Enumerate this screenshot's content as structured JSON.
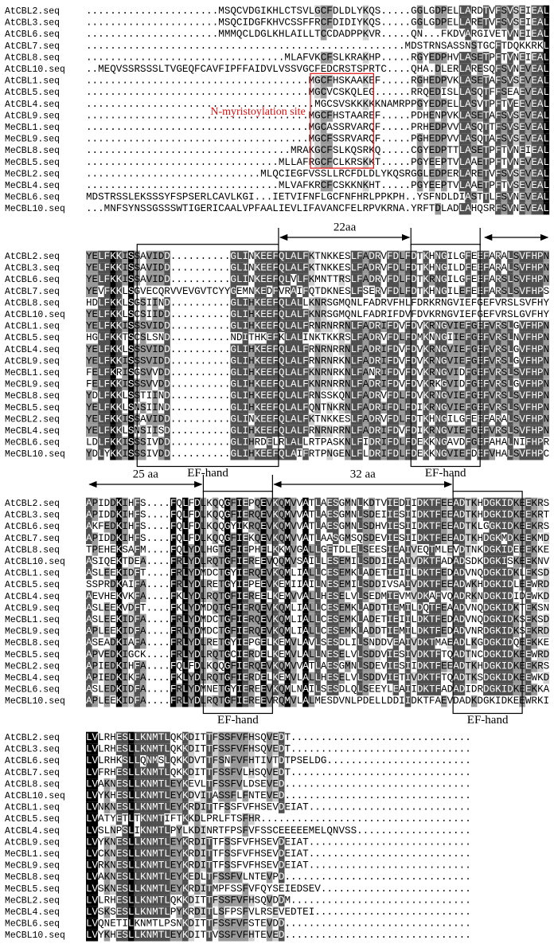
{
  "names": [
    "AtCBL2.seq",
    "AtCBL3.seq",
    "AtCBL6.seq",
    "AtCBL7.seq",
    "AtCBL8.seq",
    "AtCBL10.seq",
    "AtCBL1.seq",
    "AtCBL5.seq",
    "AtCBL4.seq",
    "AtCBL9.seq",
    "MeCBL1.seq",
    "MeCBL9.seq",
    "MeCBL8.seq",
    "MeCBL5.seq",
    "MeCBL2.seq",
    "MeCBL4.seq",
    "MeCBL6.seq",
    "MeCBL10.seq"
  ],
  "blocks": [
    {
      "site_label": "N-myristoylation site",
      "rows": [
        "......................MSQCVDGIKHLCTSVLGCFDLDLYKQS.....GGLGDPELLARDTVFSVSEIEAL",
        "......................MSQCIDGFKHVCSSFFRCFDIDIYKQS.....GGLGDPELLARETVFSVSEIEAL",
        "......................MMMQCLDGLKHLAILLTCCDADPPKVR.....QN...FKDVARGIVETVNEIEAL",
        ".....................................................MDSTRNSASSNSTGCFTDQKKRKL",
        ".................................MLAFVKCFSLKRAKHP.....RGYEDPHVLASETPFTVNEIEAL",
        "..MEQVSSRSSSLTVGEQFCAVFIPFFAIDVLVSSVGCFEDCRSTSPRTC....QHA.DLERLARESQFSVNEVEAL",
        ".....................................MGCFHSKAAKEF.....RGHEDPVKLASETAFSVSEVEAL",
        ".....................................MGCVCSKQLEG......RRQEDISLLASQTFFSEAEVEAL",
        "......................................MGCSVSKKKKKNAMRPPGYEDPELLASVTPFTVEEVEAL",
        ".....................................MGCFHSTAAREF.....PDHENPVKLASETAFSVSEVEAL",
        ".....................................MGCASSRVARQF.....PRHEDPVVLASQTTFSVSEVEAL",
        ".....................................MGCFSSRVARQF.....PGHEDPVVLASQTAFSVSEVEAL",
        "..................................MRAKGCFSLKQSRKQ.....CGYEDPTTLASETPFTVNEIEAL",
        "................................MLLAFRGCFCLKRSKKT.....PGYEEPTVLAAETPFTVNEVEAL",
        ".............................MLQCIEGFVSSLLRCFDLDLYKQSRGGLEDPERLARETVFSVSEVEAL",
        "................................MLVAFKRCFCSKKNKHT.....PGYEEPTVLAAETPFTVSEVEAL",
        "MDSTRSSLEKSSSYFSPSERLCAVLKGI...IETVIFNFLGCFNFHRLPPKPH..YSFNDLDIASTTLFSVNEVEAL",
        "...MNFSYNSSGSSSWTIGERICAALVPFAALIEVLIFAVANCFELRPVKRNA.YRFTDLADLAHQSRFSVNEVEAL"
      ]
    },
    {
      "arrow_labels": [
        "22aa"
      ],
      "box_labels": [
        "EF-hand",
        "EF-hand"
      ],
      "rows": [
        "YELFKKISSAVIDD..........GLINKEEFQLALFKTNKKESLFADRVFDLFDTKHNGILGFEEFARALSVFHPN",
        "YELFKKISSAVIDD..........GLINKEEFQLALFKTNKKESLFADRVFDLFDTKHNGILDFEEFARALSVFHPN",
        "YELFKKISSAVIDD..........GLINKEEFQLVLFKMNTTRSLFADRVFDLFDTKRNGILGFEEFARSLSVFHPN",
        "YEVFKKLSGVECQRVVEVGVTCYYGEMNKEDFVRAIFQTDKNESLFSERVFDLFDTKHNGILEFEEFARSLSVFHPS",
        "HDLFKKLSGSIIND..........GLIHKEEFQLALLKNRSGMQNLFADRVFHLFDRKRNGVIEFGEFVRSLSVFHY",
        "YELFKKLSCSIIDD..........GLIHKEEFQLALFKNRSGMQNLFADRIFDVFDVKRNGVIEFGEFVRSLGVFHY",
        "YELFKKISSSVIDD..........GLIHKEEFQLALFRNRNRRNLFADRIFDVFDVKRNGVIEFGEFVRSLGVFHPN",
        "HGLFKKTSCSLSND..........NDITHKEFKLALINKTKKRSLFADRVFDLFDMKNNGIIEFGEFVRSLNVFHPN",
        "YELFKKLSSSVIDD..........GLIHKEEFQLALFRNRNRRNLFADRIFDVFDVKRNGVIEFGEFVRSLGVFHPN",
        "YELFKKISSSVIDD..........GLIHKEEFQLALFRNRNRKNLFADRIFDVFDVKRNGVIEFGEFVRSLGVFHPN",
        "FELFKRISGSVVDD..........GLIHKEEFQLALFKNRNRKNLFANRIFDVFDVKRNGVIDFGEFVRSLSVFHPN",
        "FELFKKISSSVVDD..........GLIHKEEFQLALFKNRNRRNLFADRIFDVFDVKRKGVIDFGEFVRSLGVFHPN",
        "YDLFKKLSSTIIND..........GLIHKEEFQLALFRNSSKQNLFADRVFDLFDVKRNGVIEFGEFVRSLSVFHPN",
        "YELFKKLSNSIIND..........GLIHKEEFQLALFQNTNKRNLFADRIFDLFDIKRNGVIEFGEFVRSLSVFHPN",
        "YELFKKISSAVIDD..........GLINKEEFQLALFKTNKKESLFADRVFDLFDTKHNGILGFEEFARALSVFHPN",
        "YELFKKLSNSIISD..........GLIHKEEFQLALFRNRNRRNLFADRIFDVFDIKRNGVIEFGEFVRSLSVFHPN",
        "LDLFKKISSSIVDD..........GLIHRDELRLALLRTPASKNLFIDRIFDLFDEKKNGAVDFGEFAHALNIFHPR",
        "YDLYKKISSSIVDD..........GLIHKEEFQLAIFRTPNGENLFLDRIFDLFDEKKNGVIEFDEFVHALSVFHPC"
      ]
    },
    {
      "arrow_labels": [
        "25 aa",
        "32 aa"
      ],
      "box_labels": [
        "EF-hand",
        "EF-hand"
      ],
      "rows": [
        "APIDDKIHFS....FQLFDLKQQGFIEPQEVKQMVVATLAESGMNLKDTVIEDIIDKTFEEADTKHDGKIDKEEKRS",
        "APIDDKIHFS....FQLFDLKQQGFIERQEVKQMVVATLAESGMNLSDEIIESIIDKTFEEADTKHDGKIDKEEKRT",
        "AKFEDKIHFS....FQLFDLKQQGYIKRQEVKQMVVATLAESGMNLSDHVIESIIDKTFEEADTKLGGKIDKEEKRS",
        "APIDDKIHFS....FQLFDLKQQGFIEKQEVKQMVVATLAASGMSQSDEVIESIIDKTFEEADTKHDGKMDKEEKMD",
        "TPEHEKSAFM....FQLYDLHGTGFIEPHELKKMVGALLGETDLELSEESIEAIVEQTMLEVDTNKDGKIDEEEKKE",
        "ASIQEKTDEA....FRLYDLRQTGFIEREEVQQMVSAILLESEMILSDDIIEAIVDKTFADADSDKDGKISKEEKNV",
        "ASLEEKIDFT....FRLYDMDCTGYIERQEVKQMLIALLCESEMKLADETIEIILDKTFEDADVNQDGKIDKLEKSD",
        "SSPRDKAIFA....FRLYDLRETGYIEPEEVKEMIIAILNESEMILSDDIVSAIVDKTFEEADWKHDGKIDLEEWRD",
        "AEVHEKVKFA....FKLYDLRQTGFIEREELKEMVVALLHESELVLSEDMIEVMVDKAFVQADRKNDGKIDIDEWKD",
        "ASLEEKVDFT....FKLYDMDQTGFIERQEVKQMLIALLCESEMKLADDTIEMILDQTFEAADVNQDGKIDKTEKSN",
        "ASLEEKIDFA....FRLYDMDCTGFIERQEVKQMLIALLCESEMKLADETIEIILDKTFEDADVNQDGKIDKSEKSD",
        "APLEEKIDFA....FRLYDMDCTGFIERQEVKQMLIALLCESEMKLADDTIEMILDKTFEDADVNRDGKIDKSEKRD",
        "ASEADKIAFA....FRLYDLRETGYIEPGELKEMVLAVLSESDLILSNDDVEAIVDKTMAEADLKGDGKIDQEEKKE",
        "APVEDKIGCK....FRLYDLRQTGCIERDELKEMVLALLNESELVLSDDVIESIVDKTFTQADTNCDGKIDKEEWRD",
        "APIEDKIHFA....FQLFDLKQQGFIERQEVKQMVVATLAESGMNLSDEVIESIIDKTFEEADTKHDGKIDKEEKRS",
        "APIEDKIKFA....FKLYDLRQTGFIERDELKEMVLALLHESELVLSDDVIETIVDKTFTQADTKSDGKIDKEEWKD",
        "ASLEDKIDFA....FRLYDMNETGYIEREEVKQMLNAILSESDLQLSEEYLEAIIDKTFADADIDRDGKIDKEEKKA",
        "APLEEKIDFA....FRLYDLRQTGFIEREEVRQMVLALMESDVNLPDELLDDIIDKTFAEVDADKDGKIDKEEWRKI"
      ]
    },
    {
      "rows": [
        "LVLRHESLLKNMTLQKKDITTFSSFVFHSQVEDT..............................",
        "LVLRHESLLKNMTLQKKDITTFSSFVFHSQVEDT..............................",
        "LVLRHKSLLQNMSLQKKDVTTFSNFVFHTIVTDTPSELDG........................",
        "LVFRHESLLKNMTLQKKDITTFSSFVLHSQVEDT..............................",
        "LVAKNESLLKNMTLEYKEVLTFSSFVLDSEVED...............................",
        "LVYKHESLLKNMTLEYKDVITASSFLFNTEVED...............................",
        "LVNKNESLLKNMTLEYKRDITTFSSFVFHSEVDEIAT...........................",
        "LVATYETLTKNMTIFTKKDLPRLFTSFHR...................................",
        "LVSLNPSLIKNMTLPYLKDINRTFPSFVFSSCEEEEEMELQNVSS...................",
        "LVYKNESLLKNMTLEYKRDITTFSSFVFHSEVDEIAT...........................",
        "LVCKNESLLKNMTLEYKRDITTFSSFVFHSEVDEIAT...........................",
        "LVRKNESLLKNMTLEYKRDITTFSSFVFHSEVDEIAT...........................",
        "LVAKNESLLKNMTLEYKEDLTFSSFVLNTEVPD...............................",
        "LVSKNESLLKNMTLEYKRDITMPFSSFVFQYSEIEDSEV.........................",
        "LVLRHESLLKNMTLQKKDITTFSSFVFHSQVDDM..............................",
        "LVSKSESLLKNMTLPYKRDITLSFPSFVLRSEVEDTEI..........................",
        "LVQNETILKNMTLPSNKDITTFSSFVFSTEVDD...............................",
        "LVYKHESLLKNMTLEYKDITTVSSFVFHTEVED..............................."
      ]
    }
  ]
}
